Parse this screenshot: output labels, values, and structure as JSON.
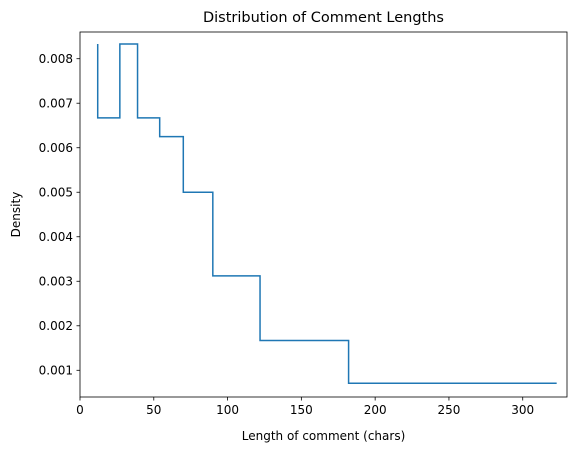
{
  "chart_data": {
    "type": "line",
    "subtype": "step histogram",
    "title": "Distribution of Comment Lengths",
    "xlabel": "Length of comment (chars)",
    "ylabel": "Density",
    "xlim": [
      0,
      330
    ],
    "ylim": [
      0.0004,
      0.0086
    ],
    "xticks": [
      0,
      50,
      100,
      150,
      200,
      250,
      300
    ],
    "xtick_labels": [
      "0",
      "50",
      "100",
      "150",
      "200",
      "250",
      "300"
    ],
    "yticks": [
      0.001,
      0.002,
      0.003,
      0.004,
      0.005,
      0.006,
      0.007,
      0.008
    ],
    "ytick_labels": [
      "0.001",
      "0.002",
      "0.003",
      "0.004",
      "0.005",
      "0.006",
      "0.007",
      "0.008"
    ],
    "grid": false,
    "legend": "none",
    "line_color": "#1f77b4",
    "bins": [
      {
        "start": 12,
        "end": 27,
        "density": 0.00667
      },
      {
        "start": 27,
        "end": 39,
        "density": 0.00833
      },
      {
        "start": 39,
        "end": 54,
        "density": 0.00667
      },
      {
        "start": 54,
        "end": 70,
        "density": 0.00625
      },
      {
        "start": 70,
        "end": 90,
        "density": 0.005
      },
      {
        "start": 90,
        "end": 122,
        "density": 0.00312
      },
      {
        "start": 122,
        "end": 182,
        "density": 0.00167
      },
      {
        "start": 182,
        "end": 323,
        "density": 0.00071
      }
    ],
    "series": [
      {
        "x": [
          12,
          12,
          12,
          27,
          27,
          39,
          39,
          54,
          54,
          70,
          70,
          90,
          90,
          122,
          122,
          182,
          182,
          323
        ],
        "y": [
          0.00833,
          0.00667,
          0.00667,
          0.00667,
          0.00833,
          0.00833,
          0.00667,
          0.00667,
          0.00625,
          0.00625,
          0.005,
          0.005,
          0.00312,
          0.00312,
          0.00167,
          0.00167,
          0.00071,
          0.00071
        ]
      }
    ]
  }
}
